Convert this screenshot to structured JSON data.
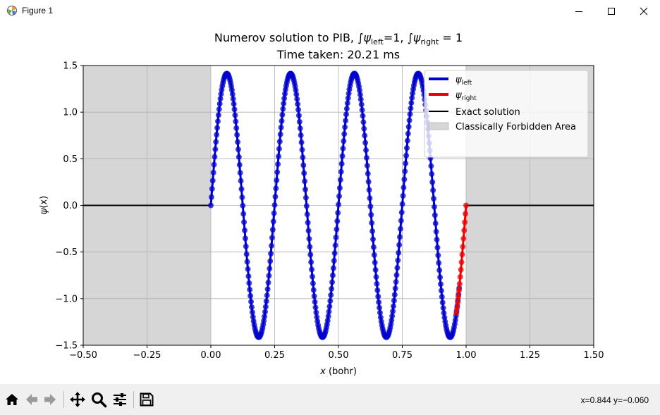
{
  "window": {
    "title": "Figure 1",
    "icons": {
      "app": "matplotlib-icon",
      "minimize": "minimize-icon",
      "maximize": "maximize-icon",
      "close": "close-icon"
    }
  },
  "toolbar": {
    "buttons": [
      {
        "name": "home",
        "icon": "home-icon"
      },
      {
        "name": "back",
        "icon": "back-arrow-icon"
      },
      {
        "name": "forward",
        "icon": "forward-arrow-icon"
      },
      {
        "name": "pan",
        "icon": "pan-icon"
      },
      {
        "name": "zoom",
        "icon": "zoom-icon"
      },
      {
        "name": "configure-subplots",
        "icon": "sliders-icon"
      },
      {
        "name": "save",
        "icon": "save-icon"
      }
    ],
    "coords": "x=0.844 y=−0.060"
  },
  "chart_data": {
    "type": "line",
    "title_line1_prefix": "Numerov solution to PIB, ∫",
    "title_line2": "Time taken: 20.21 ms",
    "xlabel": "(bohr)",
    "ylabel": "(x)",
    "xlim": [
      -0.5,
      1.5
    ],
    "ylim": [
      -1.5,
      1.5
    ],
    "xticks": [
      -0.5,
      -0.25,
      0.0,
      0.25,
      0.5,
      0.75,
      1.0,
      1.25,
      1.5
    ],
    "xtick_labels": [
      "−0.50",
      "−0.25",
      "0.00",
      "0.25",
      "0.50",
      "0.75",
      "1.00",
      "1.25",
      "1.50"
    ],
    "yticks": [
      -1.5,
      -1.0,
      -0.5,
      0.0,
      0.5,
      1.0,
      1.5
    ],
    "ytick_labels": [
      "−1.5",
      "−1.0",
      "−0.5",
      "0.0",
      "0.5",
      "1.0",
      "1.5"
    ],
    "grid": true,
    "legend_position": "top-right",
    "legend": [
      "left",
      "right",
      "Exact solution",
      "Classically Forbidden Area"
    ],
    "forbidden_regions": [
      [
        -0.5,
        0.0
      ],
      [
        1.0,
        1.5
      ]
    ],
    "exact_solution": {
      "amplitude": 1.4142,
      "n": 8,
      "x_range": [
        0.0,
        1.0
      ]
    },
    "series": [
      {
        "name": "left",
        "color": "#0000cc",
        "x_range": [
          0.0,
          0.973
        ],
        "amplitude": 1.4142,
        "n": 8
      },
      {
        "name": "right",
        "color": "#ee0000",
        "x_range": [
          0.962,
          1.0
        ],
        "amplitude": 1.4142,
        "n": 8
      }
    ],
    "colors": {
      "forbidden": "#d6d6d6",
      "grid": "#b0b0b0",
      "exact": "#000000"
    }
  }
}
